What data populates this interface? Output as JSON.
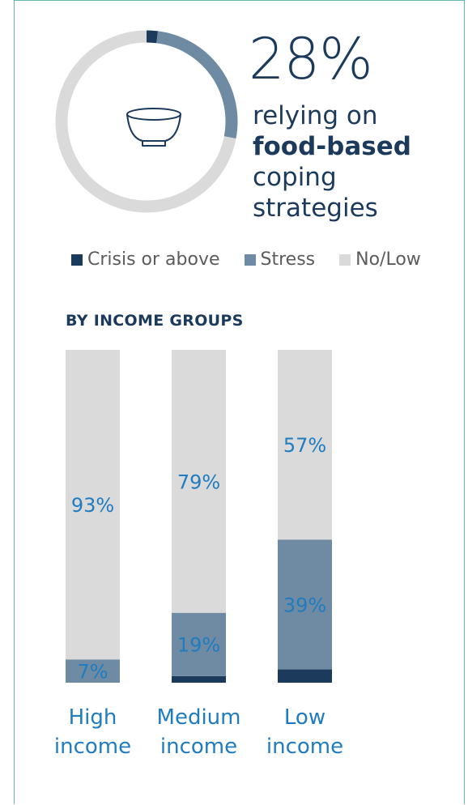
{
  "headline": {
    "percent": "28%",
    "line1": "relying on",
    "line2_bold": "food-based",
    "line3": "coping",
    "line4": "strategies",
    "icon": "bowl-icon"
  },
  "legend": [
    {
      "label": "Crisis or above",
      "color": "#1b3a5c"
    },
    {
      "label": "Stress",
      "color": "#6f8ba3"
    },
    {
      "label": "No/Low",
      "color": "#dadada"
    }
  ],
  "section_title": "BY INCOME GROUPS",
  "chart_data": [
    {
      "type": "pie",
      "style": "donut",
      "slices": [
        {
          "name": "Crisis or above",
          "value": 2
        },
        {
          "name": "Stress",
          "value": 26
        },
        {
          "name": "No/Low",
          "value": 72
        }
      ]
    },
    {
      "type": "bar",
      "stacked": true,
      "orientation": "vertical",
      "categories": [
        "High income",
        "Medium income",
        "Low income"
      ],
      "category_lines": [
        [
          "High",
          "income"
        ],
        [
          "Medium",
          "income"
        ],
        [
          "Low",
          "income"
        ]
      ],
      "series": [
        {
          "name": "Crisis or above",
          "values": [
            0,
            2,
            4
          ]
        },
        {
          "name": "Stress",
          "values": [
            7,
            19,
            39
          ]
        },
        {
          "name": "No/Low",
          "values": [
            93,
            79,
            57
          ]
        }
      ],
      "labels": [
        {
          "series": "Stress",
          "text": [
            "7%",
            "19%",
            "39%"
          ]
        },
        {
          "series": "No/Low",
          "text": [
            "93%",
            "79%",
            "57%"
          ]
        }
      ],
      "ylim": [
        0,
        100
      ]
    }
  ],
  "colors": {
    "crisis": "#1b3a5c",
    "stress": "#6f8ba3",
    "nolow": "#dadada",
    "label": "#1f7cc0"
  }
}
